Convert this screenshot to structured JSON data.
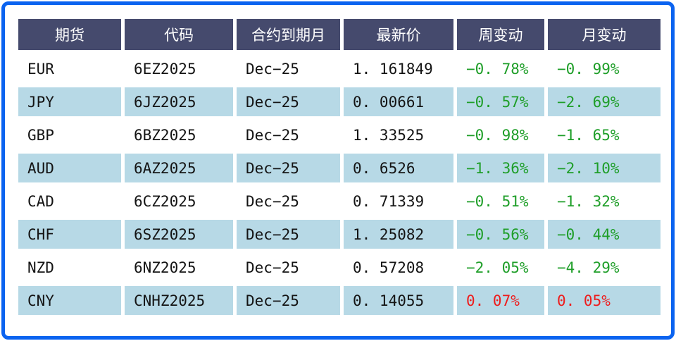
{
  "chart_data": {
    "type": "table",
    "columns": [
      {
        "key": "futures",
        "label": "期货"
      },
      {
        "key": "code",
        "label": "代码"
      },
      {
        "key": "expiry_month",
        "label": "合约到期月"
      },
      {
        "key": "last_price",
        "label": "最新价"
      },
      {
        "key": "weekly_change",
        "label": "周变动"
      },
      {
        "key": "monthly_change",
        "label": "月变动"
      }
    ],
    "rows": [
      {
        "futures": "EUR",
        "code": "6EZ2025",
        "expiry_month": "Dec-25",
        "last_price": "1.161849",
        "weekly_change": "-0.78%",
        "monthly_change": "-0.99%"
      },
      {
        "futures": "JPY",
        "code": "6JZ2025",
        "expiry_month": "Dec-25",
        "last_price": "0.00661",
        "weekly_change": "-0.57%",
        "monthly_change": "-2.69%"
      },
      {
        "futures": "GBP",
        "code": "6BZ2025",
        "expiry_month": "Dec-25",
        "last_price": "1.33525",
        "weekly_change": "-0.98%",
        "monthly_change": "-1.65%"
      },
      {
        "futures": "AUD",
        "code": "6AZ2025",
        "expiry_month": "Dec-25",
        "last_price": "0.6526",
        "weekly_change": "-1.36%",
        "monthly_change": "-2.10%"
      },
      {
        "futures": "CAD",
        "code": "6CZ2025",
        "expiry_month": "Dec-25",
        "last_price": "0.71339",
        "weekly_change": "-0.51%",
        "monthly_change": "-1.32%"
      },
      {
        "futures": "CHF",
        "code": "6SZ2025",
        "expiry_month": "Dec-25",
        "last_price": "1.25082",
        "weekly_change": "-0.56%",
        "monthly_change": "-0.44%"
      },
      {
        "futures": "NZD",
        "code": "6NZ2025",
        "expiry_month": "Dec-25",
        "last_price": "0.57208",
        "weekly_change": "-2.05%",
        "monthly_change": "-4.29%"
      },
      {
        "futures": "CNY",
        "code": "CNHZ2025",
        "expiry_month": "Dec-25",
        "last_price": "0.14055",
        "weekly_change": "0.07%",
        "monthly_change": "0.05%"
      }
    ]
  },
  "colors": {
    "frame_border": "#0b63f0",
    "header_bg": "#454a6d",
    "header_text": "#ffffff",
    "row_alt_bg": "#b7d9e6",
    "row_bg": "#ffffff",
    "negative_change": "#1e9e28",
    "positive_change": "#ee1c1c",
    "text": "#141414"
  }
}
